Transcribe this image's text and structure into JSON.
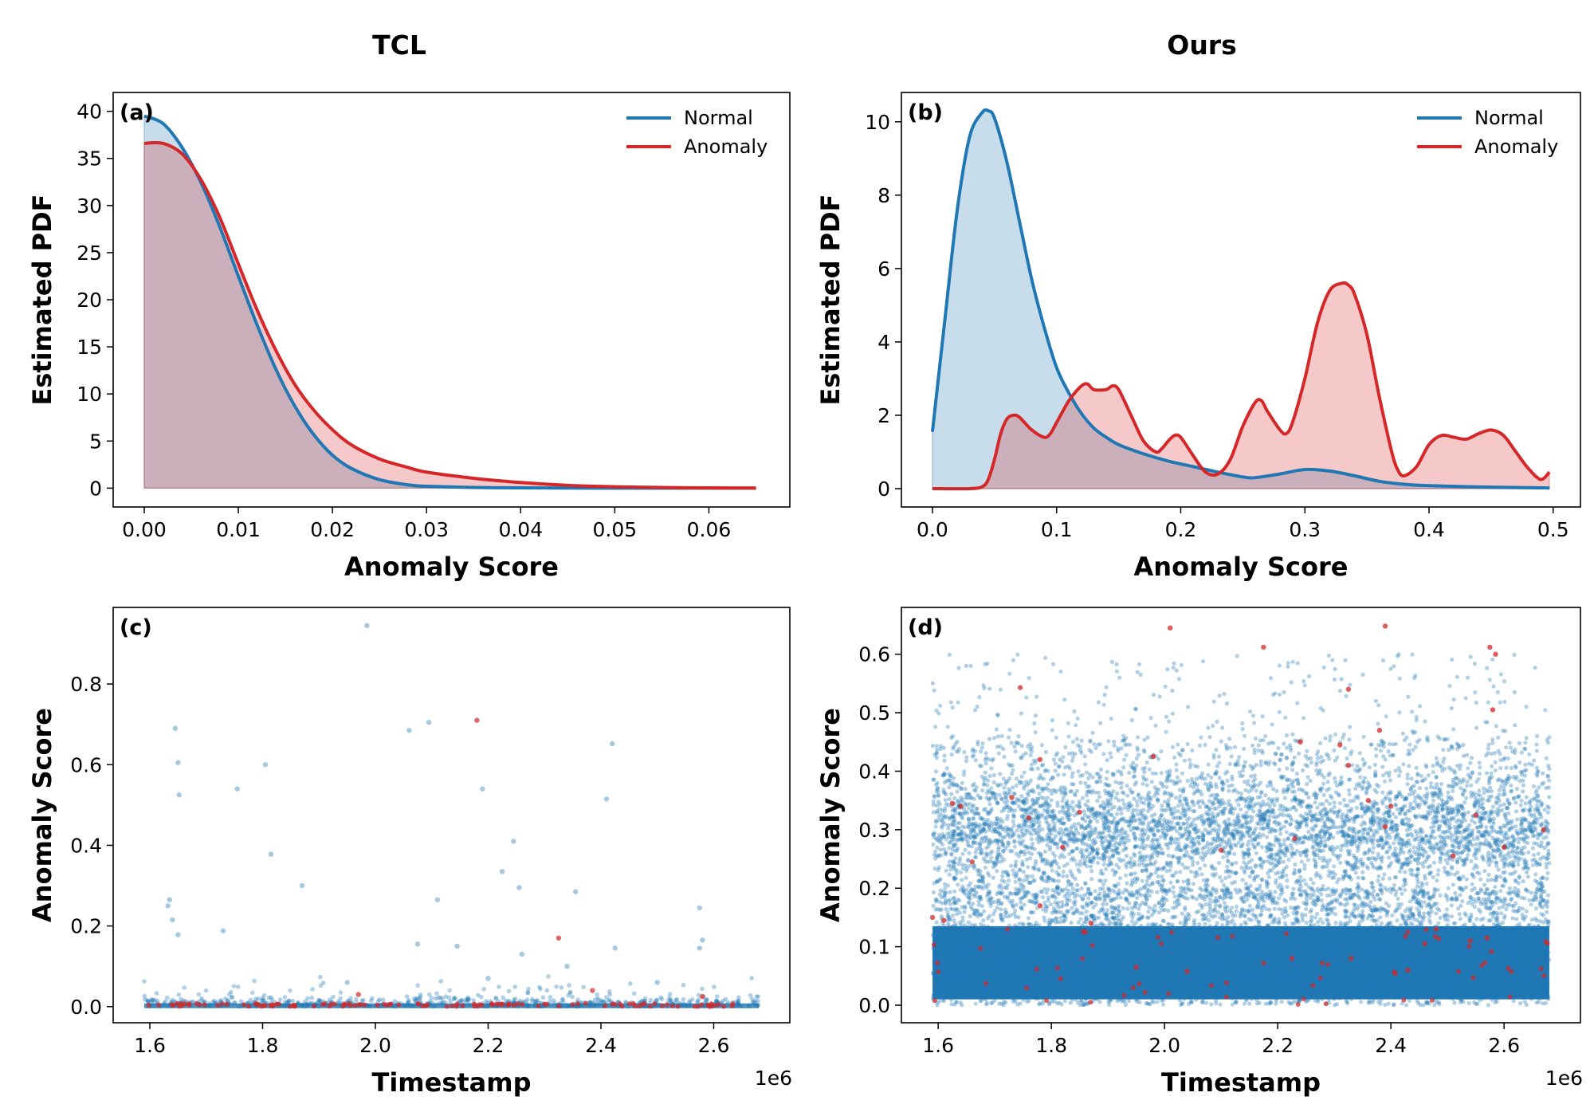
{
  "figure": {
    "left_title": "TCL",
    "right_title": "Ours"
  },
  "colors": {
    "normal": "#1f77b4",
    "anomaly": "#d62728"
  },
  "chart_data": [
    {
      "panel": "(a)",
      "type": "area",
      "title": "",
      "xlabel": "Anomaly Score",
      "ylabel": "Estimated PDF",
      "xlim": [
        -0.0033,
        0.0686
      ],
      "ylim": [
        -2,
        42
      ],
      "xticks": [
        0.0,
        0.01,
        0.02,
        0.03,
        0.04,
        0.05,
        0.06
      ],
      "xtick_labels": [
        "0.00",
        "0.01",
        "0.02",
        "0.03",
        "0.04",
        "0.05",
        "0.06"
      ],
      "yticks": [
        0,
        5,
        10,
        15,
        20,
        25,
        30,
        35,
        40
      ],
      "ytick_labels": [
        "0",
        "5",
        "10",
        "15",
        "20",
        "25",
        "30",
        "35",
        "40"
      ],
      "legend": [
        "Normal",
        "Anomaly"
      ],
      "legend_position": "top-right",
      "series": [
        {
          "name": "Normal",
          "x": [
            0,
            0.002,
            0.004,
            0.006,
            0.008,
            0.01,
            0.012,
            0.014,
            0.016,
            0.018,
            0.02,
            0.022,
            0.025,
            0.028,
            0.03,
            0.035,
            0.04,
            0.045,
            0.05,
            0.055,
            0.06,
            0.065
          ],
          "y": [
            39.5,
            38.7,
            36.2,
            32.5,
            27.8,
            22.5,
            17.3,
            12.6,
            8.7,
            5.7,
            3.5,
            2.1,
            0.9,
            0.35,
            0.2,
            0.07,
            0.03,
            0.01,
            0.0,
            0.0,
            0.0,
            0.0
          ]
        },
        {
          "name": "Anomaly",
          "x": [
            0,
            0.002,
            0.004,
            0.006,
            0.008,
            0.01,
            0.012,
            0.014,
            0.016,
            0.018,
            0.02,
            0.022,
            0.025,
            0.028,
            0.03,
            0.035,
            0.04,
            0.045,
            0.05,
            0.055,
            0.06,
            0.065
          ],
          "y": [
            36.6,
            36.6,
            35.5,
            32.8,
            28.8,
            23.8,
            18.9,
            14.6,
            11.0,
            8.3,
            6.2,
            4.6,
            3.1,
            2.2,
            1.7,
            1.05,
            0.6,
            0.3,
            0.15,
            0.07,
            0.03,
            0.01
          ]
        }
      ]
    },
    {
      "panel": "(b)",
      "type": "area",
      "title": "",
      "xlabel": "Anomaly Score",
      "ylabel": "Estimated PDF",
      "xlim": [
        -0.025,
        0.522
      ],
      "ylim": [
        -0.5,
        10.8
      ],
      "xticks": [
        0.0,
        0.1,
        0.2,
        0.3,
        0.4,
        0.5
      ],
      "xtick_labels": [
        "0.0",
        "0.1",
        "0.2",
        "0.3",
        "0.4",
        "0.5"
      ],
      "yticks": [
        0,
        2,
        4,
        6,
        8,
        10
      ],
      "ytick_labels": [
        "0",
        "2",
        "4",
        "6",
        "8",
        "10"
      ],
      "legend": [
        "Normal",
        "Anomaly"
      ],
      "legend_position": "top-right",
      "series": [
        {
          "name": "Normal",
          "x": [
            0,
            0.01,
            0.02,
            0.03,
            0.04,
            0.045,
            0.05,
            0.06,
            0.07,
            0.08,
            0.09,
            0.1,
            0.11,
            0.12,
            0.13,
            0.14,
            0.15,
            0.17,
            0.19,
            0.21,
            0.23,
            0.25,
            0.26,
            0.28,
            0.3,
            0.32,
            0.34,
            0.36,
            0.38,
            0.4,
            0.45,
            0.497
          ],
          "y": [
            1.55,
            4.6,
            7.6,
            9.6,
            10.25,
            10.3,
            10.1,
            8.9,
            7.3,
            5.7,
            4.4,
            3.3,
            2.6,
            2.05,
            1.65,
            1.4,
            1.2,
            0.95,
            0.75,
            0.6,
            0.45,
            0.32,
            0.3,
            0.4,
            0.52,
            0.48,
            0.35,
            0.2,
            0.12,
            0.08,
            0.04,
            0.02
          ]
        },
        {
          "name": "Anomaly",
          "x": [
            0,
            0.03,
            0.04,
            0.045,
            0.05,
            0.055,
            0.06,
            0.065,
            0.07,
            0.08,
            0.09,
            0.095,
            0.1,
            0.11,
            0.12,
            0.125,
            0.13,
            0.14,
            0.145,
            0.15,
            0.16,
            0.17,
            0.18,
            0.185,
            0.19,
            0.195,
            0.2,
            0.21,
            0.22,
            0.23,
            0.24,
            0.25,
            0.26,
            0.265,
            0.27,
            0.28,
            0.285,
            0.29,
            0.3,
            0.31,
            0.32,
            0.33,
            0.335,
            0.34,
            0.35,
            0.36,
            0.37,
            0.375,
            0.38,
            0.39,
            0.4,
            0.41,
            0.42,
            0.43,
            0.44,
            0.45,
            0.46,
            0.47,
            0.48,
            0.49,
            0.497
          ],
          "y": [
            0.0,
            0.0,
            0.05,
            0.25,
            0.8,
            1.5,
            1.9,
            2.0,
            1.95,
            1.6,
            1.4,
            1.5,
            1.8,
            2.4,
            2.8,
            2.85,
            2.7,
            2.7,
            2.8,
            2.7,
            2.0,
            1.3,
            1.0,
            1.1,
            1.3,
            1.45,
            1.4,
            0.9,
            0.45,
            0.4,
            0.8,
            1.7,
            2.35,
            2.4,
            2.1,
            1.6,
            1.5,
            1.8,
            3.0,
            4.5,
            5.4,
            5.6,
            5.55,
            5.3,
            4.2,
            2.5,
            1.0,
            0.5,
            0.35,
            0.6,
            1.2,
            1.45,
            1.4,
            1.35,
            1.5,
            1.6,
            1.45,
            1.0,
            0.55,
            0.25,
            0.45
          ]
        }
      ]
    },
    {
      "panel": "(c)",
      "type": "scatter",
      "title": "",
      "xlabel": "Timestamp",
      "ylabel": "Anomaly Score",
      "x_offset_label": "1e6",
      "xlim": [
        1.535,
        2.735
      ],
      "ylim": [
        -0.04,
        0.99
      ],
      "xticks": [
        1.6,
        1.8,
        2.0,
        2.2,
        2.4,
        2.6
      ],
      "xtick_labels": [
        "1.6",
        "1.8",
        "2.0",
        "2.2",
        "2.4",
        "2.6"
      ],
      "yticks": [
        0.0,
        0.2,
        0.4,
        0.6,
        0.8
      ],
      "ytick_labels": [
        "0.0",
        "0.2",
        "0.4",
        "0.6",
        "0.8"
      ],
      "series": [
        {
          "name": "Normal",
          "approx_count": 10000,
          "x_range": [
            1.59,
            2.68
          ],
          "bulk_y_range": [
            0.0,
            0.03
          ],
          "outliers": [
            [
              1.985,
              0.945
            ],
            [
              1.645,
              0.69
            ],
            [
              1.65,
              0.605
            ],
            [
              1.652,
              0.525
            ],
            [
              1.755,
              0.54
            ],
            [
              1.805,
              0.6
            ],
            [
              1.815,
              0.378
            ],
            [
              1.87,
              0.3
            ],
            [
              1.635,
              0.265
            ],
            [
              1.632,
              0.25
            ],
            [
              1.64,
              0.215
            ],
            [
              1.65,
              0.178
            ],
            [
              1.73,
              0.188
            ],
            [
              2.06,
              0.685
            ],
            [
              2.095,
              0.705
            ],
            [
              2.19,
              0.54
            ],
            [
              2.225,
              0.335
            ],
            [
              2.245,
              0.41
            ],
            [
              2.255,
              0.295
            ],
            [
              2.11,
              0.265
            ],
            [
              2.075,
              0.155
            ],
            [
              2.145,
              0.15
            ],
            [
              2.41,
              0.515
            ],
            [
              2.42,
              0.652
            ],
            [
              2.355,
              0.285
            ],
            [
              2.425,
              0.145
            ],
            [
              2.575,
              0.245
            ],
            [
              2.58,
              0.165
            ],
            [
              2.575,
              0.145
            ],
            [
              2.34,
              0.1
            ],
            [
              2.26,
              0.13
            ],
            [
              1.95,
              0.06
            ],
            [
              2.2,
              0.07
            ],
            [
              2.5,
              0.06
            ]
          ]
        },
        {
          "name": "Anomaly",
          "approx_count": 120,
          "x_range": [
            1.59,
            2.68
          ],
          "bulk_y_range": [
            0.0,
            0.02
          ],
          "outliers": [
            [
              2.18,
              0.71
            ],
            [
              2.325,
              0.17
            ],
            [
              1.97,
              0.03
            ],
            [
              2.385,
              0.04
            ],
            [
              2.58,
              0.025
            ]
          ]
        }
      ]
    },
    {
      "panel": "(d)",
      "type": "scatter",
      "title": "",
      "xlabel": "Timestamp",
      "ylabel": "Anomaly Score",
      "x_offset_label": "1e6",
      "xlim": [
        1.535,
        2.735
      ],
      "ylim": [
        -0.03,
        0.68
      ],
      "xticks": [
        1.6,
        1.8,
        2.0,
        2.2,
        2.4,
        2.6
      ],
      "xtick_labels": [
        "1.6",
        "1.8",
        "2.0",
        "2.2",
        "2.4",
        "2.6"
      ],
      "yticks": [
        0.0,
        0.1,
        0.2,
        0.3,
        0.4,
        0.5,
        0.6
      ],
      "ytick_labels": [
        "0.0",
        "0.1",
        "0.2",
        "0.3",
        "0.4",
        "0.5",
        "0.6"
      ],
      "series": [
        {
          "name": "Normal",
          "approx_count": 30000,
          "x_range": [
            1.59,
            2.68
          ],
          "dense_y_range": [
            0.0,
            0.2
          ],
          "cluster_y_center": 0.3,
          "max_y": 0.62
        },
        {
          "name": "Anomaly",
          "approx_count": 130,
          "x_range": [
            1.59,
            2.68
          ],
          "outliers": [
            [
              2.01,
              0.645
            ],
            [
              2.175,
              0.612
            ],
            [
              2.39,
              0.648
            ],
            [
              2.575,
              0.612
            ],
            [
              2.585,
              0.6
            ],
            [
              2.58,
              0.505
            ],
            [
              1.745,
              0.543
            ],
            [
              2.325,
              0.54
            ],
            [
              2.38,
              0.47
            ],
            [
              1.73,
              0.355
            ],
            [
              1.78,
              0.42
            ],
            [
              1.98,
              0.425
            ],
            [
              2.24,
              0.45
            ],
            [
              2.325,
              0.41
            ],
            [
              2.31,
              0.445
            ],
            [
              1.625,
              0.345
            ],
            [
              1.64,
              0.34
            ],
            [
              1.66,
              0.245
            ],
            [
              1.76,
              0.32
            ],
            [
              1.82,
              0.27
            ],
            [
              1.85,
              0.33
            ],
            [
              1.78,
              0.17
            ],
            [
              1.86,
              0.125
            ],
            [
              1.87,
              0.14
            ],
            [
              1.95,
              0.065
            ],
            [
              2.04,
              0.058
            ],
            [
              2.1,
              0.265
            ],
            [
              2.225,
              0.08
            ],
            [
              2.23,
              0.285
            ],
            [
              2.33,
              0.08
            ],
            [
              2.36,
              0.35
            ],
            [
              2.39,
              0.305
            ],
            [
              2.4,
              0.34
            ],
            [
              2.43,
              0.06
            ],
            [
              2.46,
              0.105
            ],
            [
              2.48,
              0.13
            ],
            [
              2.51,
              0.255
            ],
            [
              2.54,
              0.11
            ],
            [
              2.55,
              0.325
            ],
            [
              2.57,
              0.115
            ],
            [
              2.6,
              0.27
            ],
            [
              2.67,
              0.3
            ],
            [
              1.59,
              0.15
            ],
            [
              1.61,
              0.145
            ]
          ]
        }
      ]
    }
  ]
}
